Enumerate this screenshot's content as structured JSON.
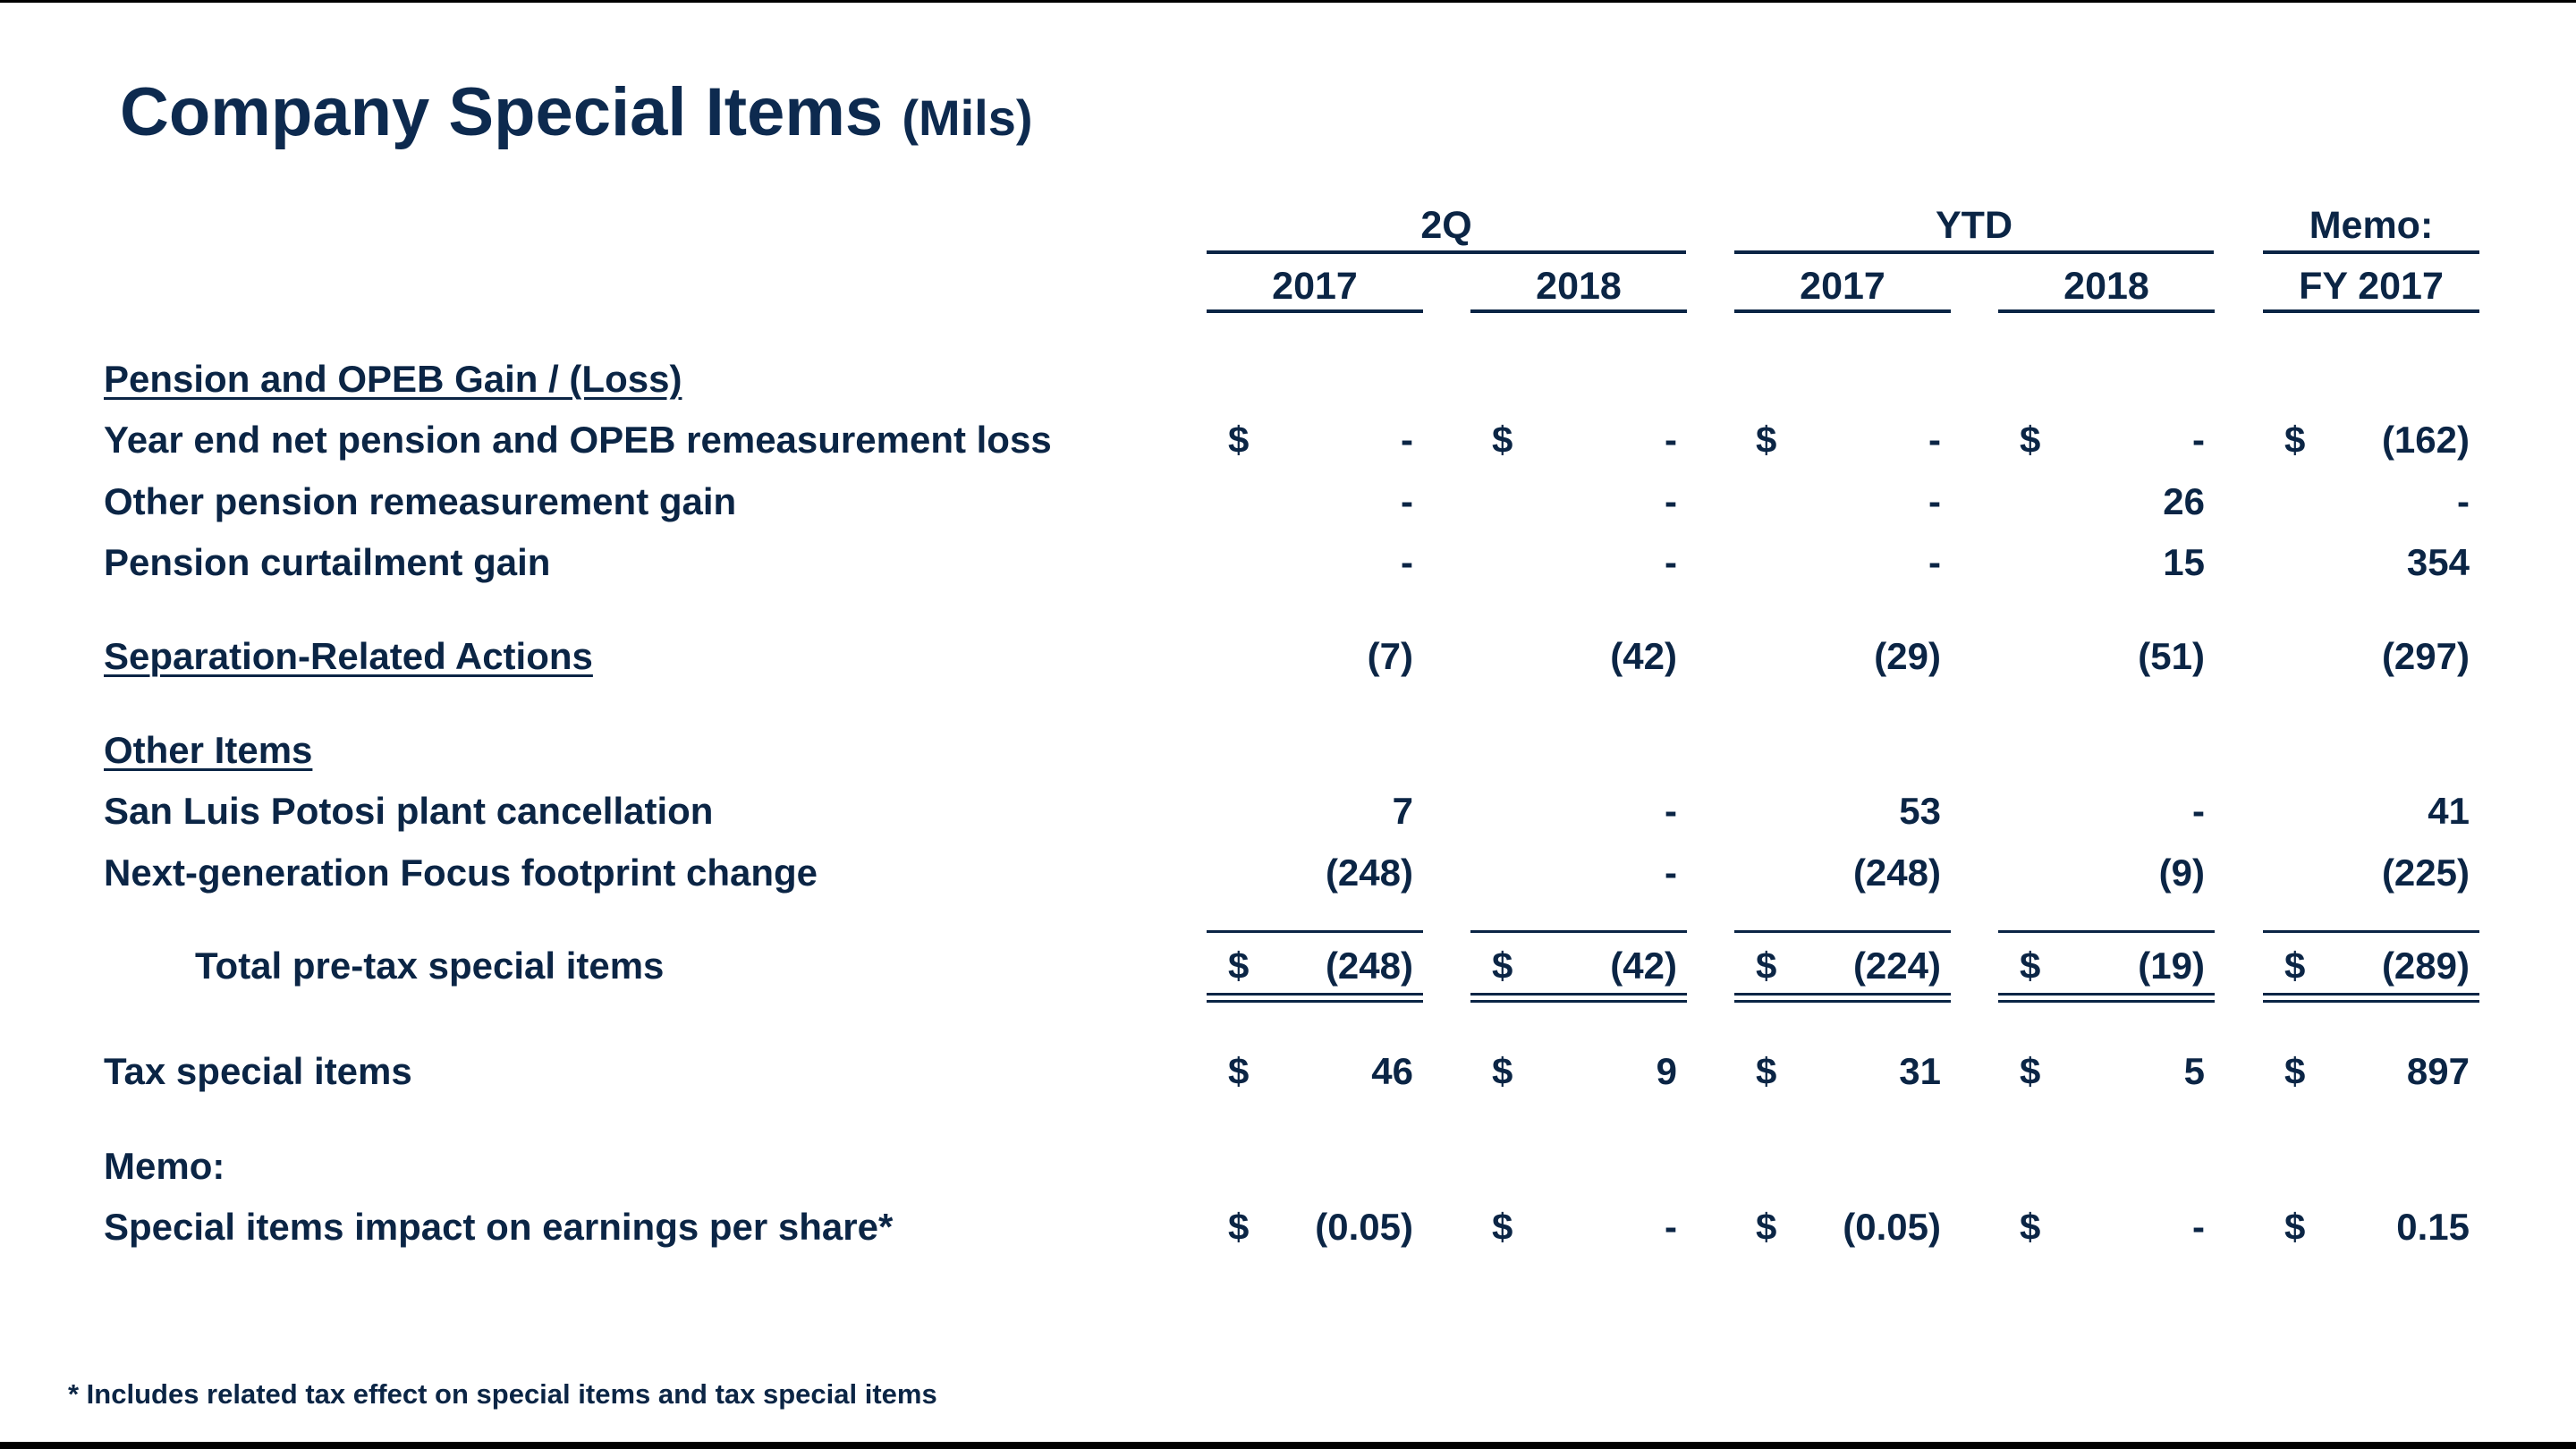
{
  "title": {
    "main": "Company Special Items",
    "sub": "(Mils)"
  },
  "column_groups": [
    {
      "label": "2Q"
    },
    {
      "label": "YTD"
    },
    {
      "label": "Memo:"
    }
  ],
  "columns": [
    "2017",
    "2018",
    "2017",
    "2018",
    "FY 2017"
  ],
  "rows": [
    {
      "label": "Pension and OPEB Gain / (Loss)",
      "style": "section"
    },
    {
      "label": "Year end net pension and OPEB remeasurement loss",
      "dollar": "$",
      "values": [
        "-",
        "-",
        "-",
        "-",
        "(162)"
      ]
    },
    {
      "label": "Other pension remeasurement gain",
      "values": [
        "-",
        "-",
        "-",
        "26",
        "-"
      ]
    },
    {
      "label": "Pension curtailment gain",
      "values": [
        "-",
        "-",
        "-",
        "15",
        "354"
      ]
    },
    {
      "label": "Separation-Related Actions",
      "style": "section",
      "values": [
        "(7)",
        "(42)",
        "(29)",
        "(51)",
        "(297)"
      ]
    },
    {
      "label": "Other Items",
      "style": "section"
    },
    {
      "label": "San Luis Potosi plant cancellation",
      "values": [
        "7",
        "-",
        "53",
        "-",
        "41"
      ]
    },
    {
      "label": "Next-generation Focus footprint change",
      "values": [
        "(248)",
        "-",
        "(248)",
        "(9)",
        "(225)"
      ]
    },
    {
      "label": "Total pre-tax special items",
      "style": "total",
      "dollar": "$",
      "values": [
        "(248)",
        "(42)",
        "(224)",
        "(19)",
        "(289)"
      ]
    },
    {
      "label": "Tax special items",
      "dollar": "$",
      "values": [
        "46",
        "9",
        "31",
        "5",
        "897"
      ]
    },
    {
      "label": "Memo:",
      "style": "plain"
    },
    {
      "label": "Special items impact on earnings per share*",
      "dollar": "$",
      "values": [
        "(0.05)",
        "-",
        "(0.05)",
        "-",
        "0.15"
      ]
    }
  ],
  "footnote": "*  Includes related tax effect on special items and tax special items"
}
